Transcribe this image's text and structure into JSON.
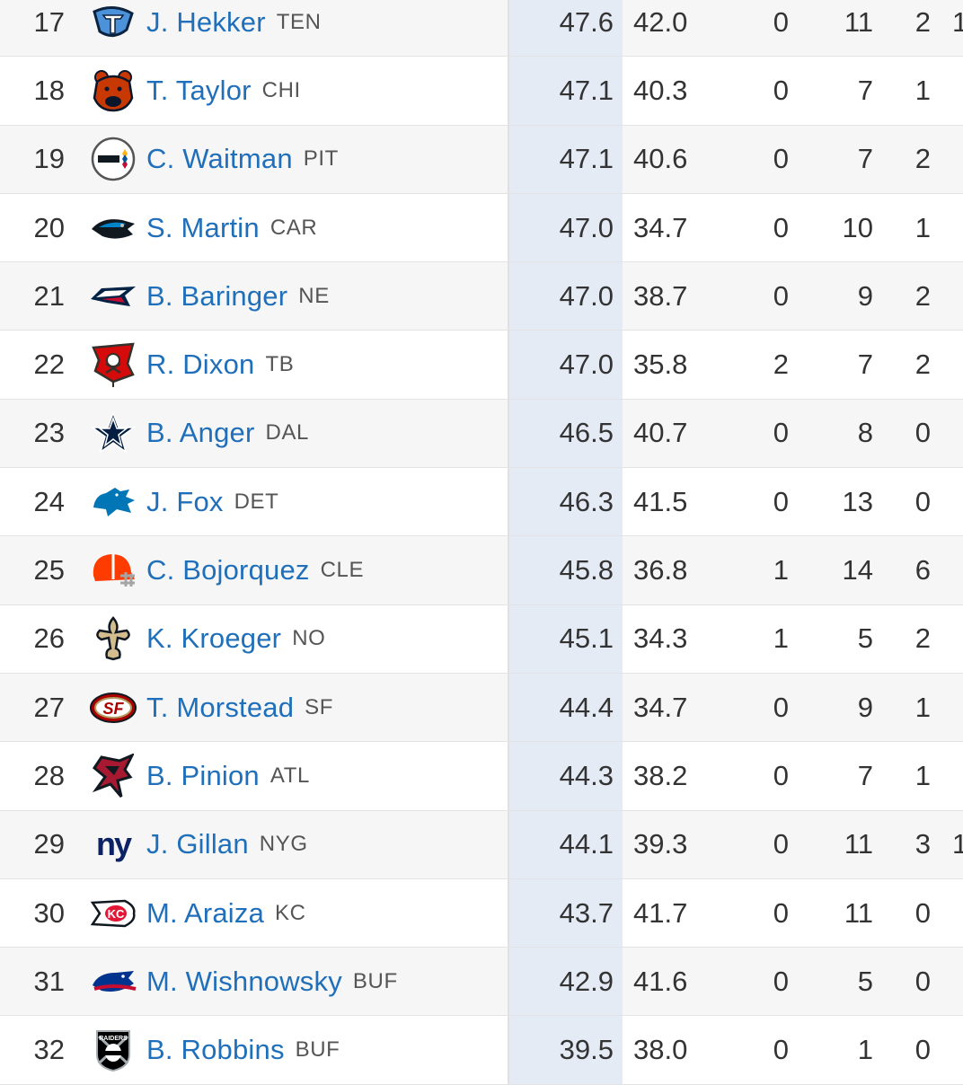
{
  "colors": {
    "link": "#1f6fba",
    "sorted_column_bg": "#e4ebf5",
    "row_alt_bg": "#f6f6f6",
    "text": "#333333"
  },
  "rows": [
    {
      "rank": "17",
      "player": "J. Hekker",
      "team": "TEN",
      "icon": "titans-logo-icon",
      "c1": "47.6",
      "c2": "42.0",
      "c3": "0",
      "c4": "11",
      "c5": "2",
      "extra": "1"
    },
    {
      "rank": "18",
      "player": "T. Taylor",
      "team": "CHI",
      "icon": "bears-logo-icon",
      "c1": "47.1",
      "c2": "40.3",
      "c3": "0",
      "c4": "7",
      "c5": "1",
      "extra": ""
    },
    {
      "rank": "19",
      "player": "C. Waitman",
      "team": "PIT",
      "icon": "steelers-logo-icon",
      "c1": "47.1",
      "c2": "40.6",
      "c3": "0",
      "c4": "7",
      "c5": "2",
      "extra": ""
    },
    {
      "rank": "20",
      "player": "S. Martin",
      "team": "CAR",
      "icon": "panthers-logo-icon",
      "c1": "47.0",
      "c2": "34.7",
      "c3": "0",
      "c4": "10",
      "c5": "1",
      "extra": ""
    },
    {
      "rank": "21",
      "player": "B. Baringer",
      "team": "NE",
      "icon": "patriots-logo-icon",
      "c1": "47.0",
      "c2": "38.7",
      "c3": "0",
      "c4": "9",
      "c5": "2",
      "extra": ""
    },
    {
      "rank": "22",
      "player": "R. Dixon",
      "team": "TB",
      "icon": "buccaneers-logo-icon",
      "c1": "47.0",
      "c2": "35.8",
      "c3": "2",
      "c4": "7",
      "c5": "2",
      "extra": ""
    },
    {
      "rank": "23",
      "player": "B. Anger",
      "team": "DAL",
      "icon": "cowboys-logo-icon",
      "c1": "46.5",
      "c2": "40.7",
      "c3": "0",
      "c4": "8",
      "c5": "0",
      "extra": ""
    },
    {
      "rank": "24",
      "player": "J. Fox",
      "team": "DET",
      "icon": "lions-logo-icon",
      "c1": "46.3",
      "c2": "41.5",
      "c3": "0",
      "c4": "13",
      "c5": "0",
      "extra": ""
    },
    {
      "rank": "25",
      "player": "C. Bojorquez",
      "team": "CLE",
      "icon": "browns-logo-icon",
      "c1": "45.8",
      "c2": "36.8",
      "c3": "1",
      "c4": "14",
      "c5": "6",
      "extra": ""
    },
    {
      "rank": "26",
      "player": "K. Kroeger",
      "team": "NO",
      "icon": "saints-logo-icon",
      "c1": "45.1",
      "c2": "34.3",
      "c3": "1",
      "c4": "5",
      "c5": "2",
      "extra": ""
    },
    {
      "rank": "27",
      "player": "T. Morstead",
      "team": "SF",
      "icon": "49ers-logo-icon",
      "c1": "44.4",
      "c2": "34.7",
      "c3": "0",
      "c4": "9",
      "c5": "1",
      "extra": ""
    },
    {
      "rank": "28",
      "player": "B. Pinion",
      "team": "ATL",
      "icon": "falcons-logo-icon",
      "c1": "44.3",
      "c2": "38.2",
      "c3": "0",
      "c4": "7",
      "c5": "1",
      "extra": ""
    },
    {
      "rank": "29",
      "player": "J. Gillan",
      "team": "NYG",
      "icon": "giants-logo-icon",
      "c1": "44.1",
      "c2": "39.3",
      "c3": "0",
      "c4": "11",
      "c5": "3",
      "extra": "1"
    },
    {
      "rank": "30",
      "player": "M. Araiza",
      "team": "KC",
      "icon": "chiefs-logo-icon",
      "c1": "43.7",
      "c2": "41.7",
      "c3": "0",
      "c4": "11",
      "c5": "0",
      "extra": ""
    },
    {
      "rank": "31",
      "player": "M. Wishnowsky",
      "team": "BUF",
      "icon": "bills-logo-icon",
      "c1": "42.9",
      "c2": "41.6",
      "c3": "0",
      "c4": "5",
      "c5": "0",
      "extra": ""
    },
    {
      "rank": "32",
      "player": "B. Robbins",
      "team": "BUF",
      "icon": "raiders-logo-icon",
      "c1": "39.5",
      "c2": "38.0",
      "c3": "0",
      "c4": "1",
      "c5": "0",
      "extra": ""
    }
  ]
}
